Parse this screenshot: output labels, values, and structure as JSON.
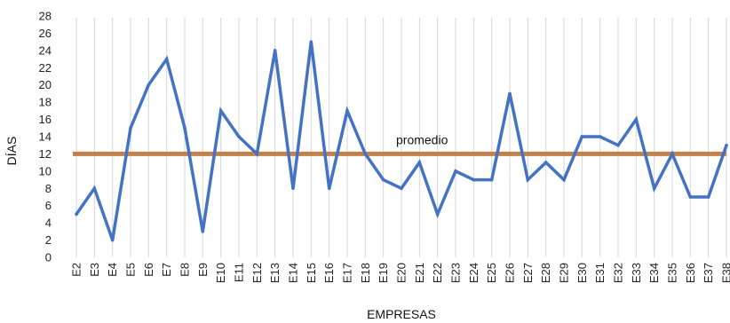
{
  "chart_data": {
    "type": "line",
    "categories": [
      "E2",
      "E3",
      "E4",
      "E5",
      "E6",
      "E7",
      "E8",
      "E9",
      "E10",
      "E11",
      "E12",
      "E13",
      "E14",
      "E15",
      "E16",
      "E17",
      "E18",
      "E19",
      "E20",
      "E21",
      "E22",
      "E23",
      "E24",
      "E25",
      "E26",
      "E27",
      "E28",
      "E29",
      "E30",
      "E31",
      "E32",
      "E33",
      "E34",
      "E35",
      "E36",
      "E37",
      "E38"
    ],
    "series": [
      {
        "name": "",
        "values": [
          5,
          8,
          2,
          15,
          20,
          23,
          15,
          3,
          17,
          14,
          12,
          24,
          8,
          25,
          8,
          17,
          12,
          9,
          8,
          11,
          5,
          10,
          9,
          9,
          19,
          9,
          11,
          9,
          14,
          14,
          13,
          16,
          8,
          12,
          7,
          7,
          13
        ],
        "color": "#4472C4"
      }
    ],
    "reference_line": {
      "label": "promedio",
      "value": 12,
      "color": "#C0814B"
    },
    "xlabel": "EMPRESAS",
    "ylabel": "DÍAS",
    "ylim": [
      0,
      28
    ],
    "yticks": [
      0,
      2,
      4,
      6,
      8,
      10,
      12,
      14,
      16,
      18,
      20,
      22,
      24,
      26,
      28
    ],
    "grid": "vertical"
  }
}
